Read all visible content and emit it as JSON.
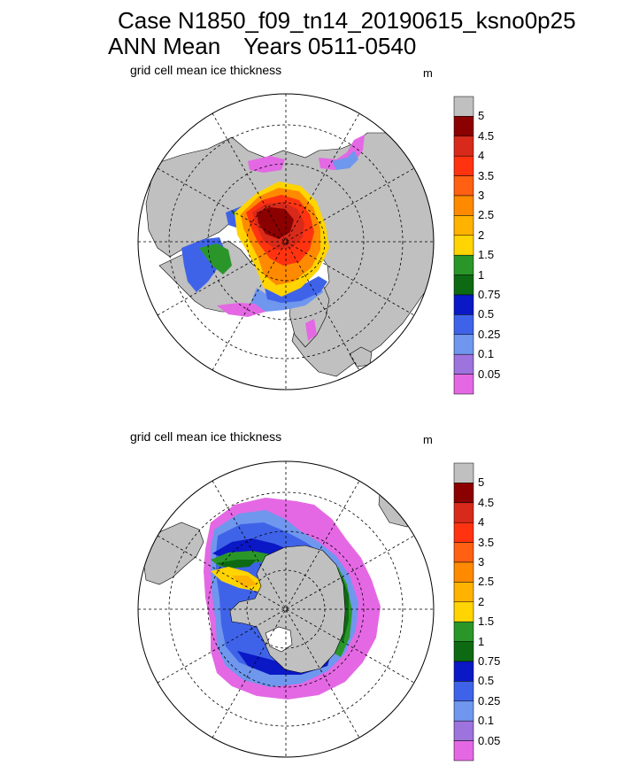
{
  "title": {
    "line1": "Case N1850_f09_tn14_20190615_ksno0p25",
    "line2_a": "ANN Mean",
    "line2_b": "Years 0511-0540"
  },
  "panels": [
    {
      "name": "arctic",
      "label": "grid cell mean ice thickness",
      "units": "m"
    },
    {
      "name": "antarctic",
      "label": "grid cell mean ice thickness",
      "units": "m"
    }
  ],
  "colorbar": {
    "levels": [
      "0.05",
      "0.1",
      "0.25",
      "0.5",
      "0.75",
      "1",
      "1.5",
      "2",
      "2.5",
      "3",
      "3.5",
      "4",
      "4.5",
      "5"
    ],
    "colors": [
      "#e468e4",
      "#9d73dd",
      "#6f97ee",
      "#3f63e8",
      "#0a18c6",
      "#0d6a12",
      "#2a962a",
      "#ffd400",
      "#ffb200",
      "#ff8a00",
      "#ff6012",
      "#ff3310",
      "#d82a1a",
      "#8b0000",
      "#c0c0c0"
    ]
  },
  "colors": {
    "land": "#c0c0c0",
    "ocean": "#ffffff",
    "grid": "#000000"
  }
}
